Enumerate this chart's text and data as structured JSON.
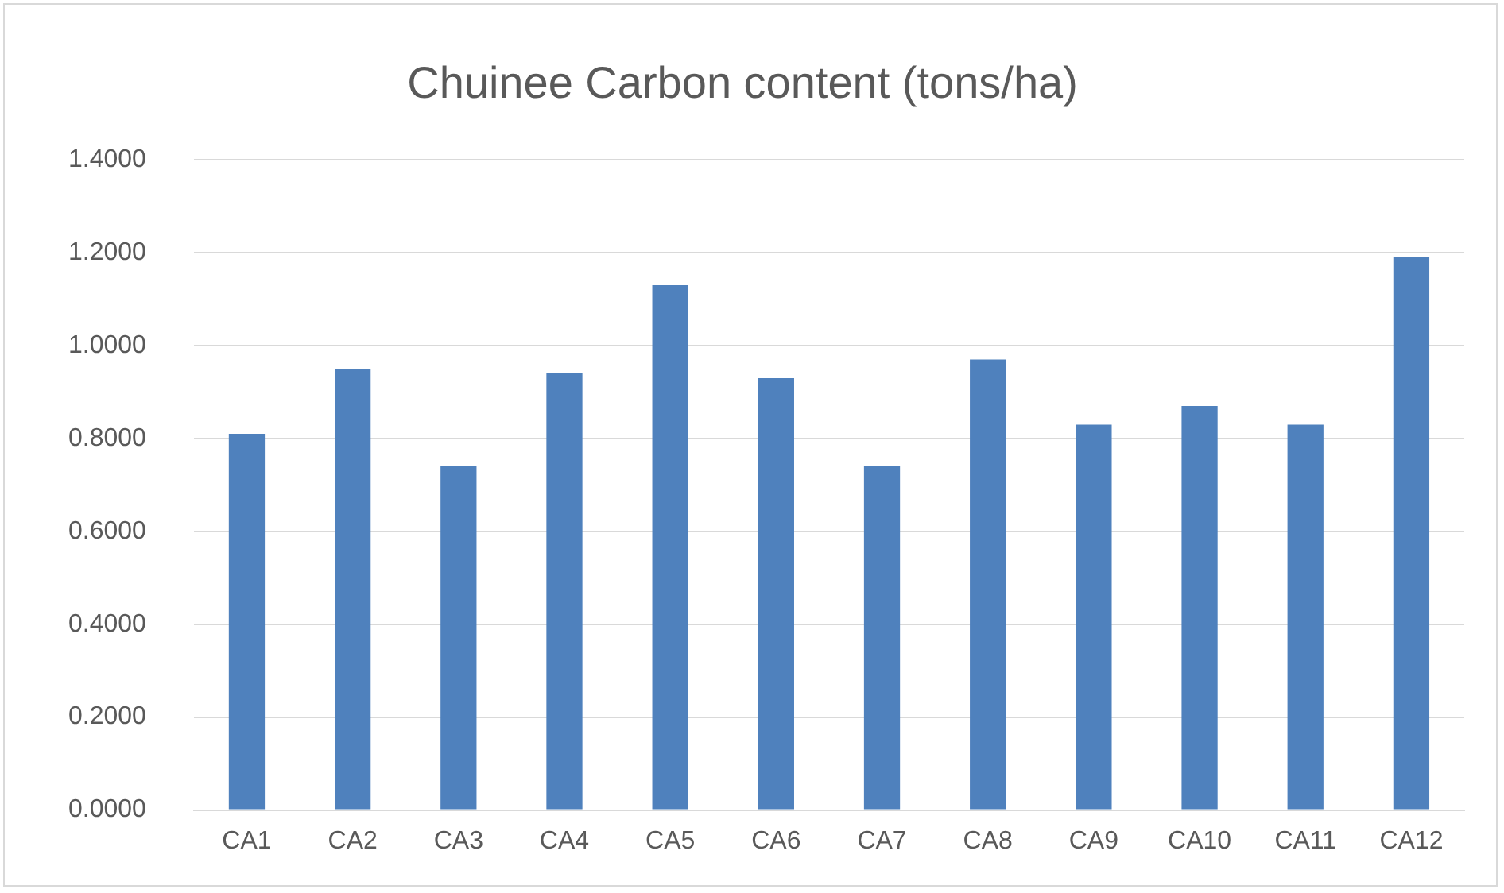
{
  "chart_data": {
    "type": "bar",
    "title": "Chuinee Carbon content (tons/ha)",
    "categories": [
      "CA1",
      "CA2",
      "CA3",
      "CA4",
      "CA5",
      "CA6",
      "CA7",
      "CA8",
      "CA9",
      "CA10",
      "CA11",
      "CA12"
    ],
    "values": [
      0.81,
      0.95,
      0.74,
      0.94,
      1.13,
      0.93,
      0.74,
      0.97,
      0.83,
      0.87,
      0.83,
      1.19
    ],
    "color": "#4f81bd",
    "ylim": [
      0,
      1.4
    ],
    "yticks": [
      {
        "value": 0,
        "label": "0.0000"
      },
      {
        "value": 0.2,
        "label": "0.2000"
      },
      {
        "value": 0.4,
        "label": "0.4000"
      },
      {
        "value": 0.6,
        "label": "0.6000"
      },
      {
        "value": 0.8,
        "label": "0.8000"
      },
      {
        "value": 1,
        "label": "1.0000"
      },
      {
        "value": 1.2,
        "label": "1.2000"
      },
      {
        "value": 1.4,
        "label": "1.4000"
      }
    ],
    "grid": "y"
  }
}
